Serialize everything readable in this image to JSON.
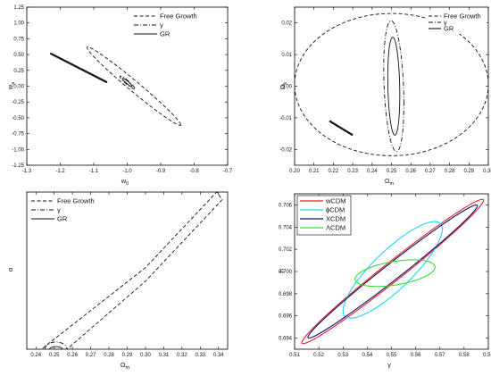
{
  "chart_data": [
    {
      "type": "line",
      "panel": "top-left",
      "xlabel": "w0",
      "ylabel": "wa",
      "xlim": [
        -1.3,
        -0.7
      ],
      "ylim": [
        -1.25,
        1.25
      ],
      "xticks": [
        "-1.3",
        "-1.2",
        "-1.1",
        "-1.0",
        "-0.9",
        "-0.8",
        "-0.7"
      ],
      "yticks": [
        "1.25",
        "1.00",
        "0.75",
        "0.50",
        "0.25",
        "0.00",
        "-0.25",
        "-0.50",
        "-0.75",
        "-1.00",
        "-1.25"
      ],
      "legend": {
        "placement": "top-right",
        "entries": [
          "Free Growth",
          "γ",
          "GR"
        ]
      },
      "series": [
        {
          "name": "Free Growth",
          "style": "dashed",
          "ellipse": {
            "center": [
              -0.98,
              0.0
            ],
            "sx": 0.14,
            "sy": 0.62,
            "rho": -0.985
          }
        },
        {
          "name": "γ",
          "style": "dashdot",
          "ellipse": {
            "center": [
              -1.0,
              0.06
            ],
            "sx": 0.022,
            "sy": 0.1,
            "rho": -0.93
          }
        },
        {
          "name": "GR",
          "style": "solid",
          "ellipse": {
            "center": [
              -1.0,
              0.06
            ],
            "sx": 0.014,
            "sy": 0.065,
            "rho": -0.93
          }
        }
      ],
      "annotations": [
        {
          "name": "GR",
          "kind": "degeneracy-line",
          "from": [
            -1.23,
            0.52
          ],
          "to": [
            -1.06,
            0.06
          ]
        }
      ]
    },
    {
      "type": "line",
      "panel": "top-right",
      "xlabel": "Ωm",
      "ylabel": "Ωk",
      "xlim": [
        0.2,
        0.3
      ],
      "ylim": [
        -0.025,
        0.025
      ],
      "xticks": [
        "0.20",
        "0.21",
        "0.22",
        "0.23",
        "0.24",
        "0.25",
        "0.26",
        "0.27",
        "0.28",
        "0.29",
        "0.30"
      ],
      "yticks": [
        "0.02",
        "0.01",
        "0.00",
        "-0.01",
        "-0.02"
      ],
      "legend": {
        "placement": "top-right",
        "entries": [
          "Free Growth",
          "γ",
          "GR"
        ]
      },
      "series": [
        {
          "name": "Free Growth",
          "style": "dashed",
          "ellipse": {
            "center": [
              0.25,
              0.0005
            ],
            "sx": 0.05,
            "sy": 0.0225,
            "rho": 0.0
          }
        },
        {
          "name": "γ",
          "style": "dashdot",
          "ellipse": {
            "center": [
              0.2512,
              0.0
            ],
            "sx": 0.0052,
            "sy": 0.0207,
            "rho": -0.27
          }
        },
        {
          "name": "GR",
          "style": "solid",
          "ellipse": {
            "center": [
              0.2512,
              0.0
            ],
            "sx": 0.0031,
            "sy": 0.0155,
            "rho": -0.18
          }
        }
      ],
      "annotations": [
        {
          "name": "Free Growth",
          "kind": "degeneracy-line",
          "from": [
            0.218,
            -0.011
          ],
          "to": [
            0.23,
            -0.0155
          ]
        }
      ]
    },
    {
      "type": "line",
      "panel": "bottom-left",
      "xlabel": "Ωm",
      "ylabel": "α",
      "xlim": [
        0.235,
        0.345
      ],
      "ylim": [
        0.0,
        1.85
      ],
      "xticks": [
        "0.24",
        "0.25",
        "0.26",
        "0.27",
        "0.28",
        "0.29",
        "0.30",
        "0.31",
        "0.32",
        "0.33",
        "0.34"
      ],
      "yticks": [],
      "legend": {
        "placement": "top-left",
        "entries": [
          "Free Growth",
          "γ",
          "GR"
        ]
      },
      "series": [
        {
          "name": "Free Growth",
          "style": "dashed",
          "points": [
            [
              0.243,
              0.0
            ],
            [
              0.257,
              0.0
            ],
            [
              0.3,
              0.8
            ],
            [
              0.342,
              1.76
            ],
            [
              0.339,
              1.85
            ],
            [
              0.3,
              0.96
            ],
            [
              0.243,
              0.0
            ]
          ]
        },
        {
          "name": "γ",
          "style": "dashdot",
          "half_ellipse": {
            "center": [
              0.251,
              0.0
            ],
            "rx": 0.006,
            "ry": 0.085
          }
        },
        {
          "name": "GR",
          "style": "solid",
          "half_ellipse": {
            "center": [
              0.251,
              0.0
            ],
            "rx": 0.0035,
            "ry": 0.03
          }
        }
      ]
    },
    {
      "type": "line",
      "panel": "bottom-right",
      "xlabel": "γ",
      "ylabel": "h",
      "xlim": [
        0.51,
        0.59
      ],
      "ylim": [
        0.693,
        0.707
      ],
      "xticks": [
        "0.51",
        "0.52",
        "0.53",
        "0.54",
        "0.55",
        "0.56",
        "0.57",
        "0.58",
        "0.59"
      ],
      "yticks": [
        "0.706",
        "0.704",
        "0.702",
        "0.700",
        "0.698",
        "0.696",
        "0.694"
      ],
      "legend": {
        "placement": "top-left",
        "entries": [
          "wCDM",
          "ϕCDM",
          "XCDM",
          "ΛCDM"
        ]
      },
      "series": [
        {
          "name": "wCDM",
          "style": "solid",
          "color": "#e8202a",
          "ellipse": {
            "center": [
              0.5505,
              0.7
            ],
            "sx": 0.0375,
            "sy": 0.0065,
            "rho": 0.986
          }
        },
        {
          "name": "ϕCDM",
          "style": "solid",
          "color": "#22d4f0",
          "ellipse": {
            "center": [
              0.5505,
              0.70015
            ],
            "sx": 0.0205,
            "sy": 0.00435,
            "rho": 0.845
          }
        },
        {
          "name": "XCDM",
          "style": "solid",
          "color": "#101070",
          "ellipse": {
            "center": [
              0.5505,
              0.7
            ],
            "sx": 0.035,
            "sy": 0.006,
            "rho": 0.988
          }
        },
        {
          "name": "ΛCDM",
          "style": "solid",
          "color": "#33dd33",
          "ellipse": {
            "center": [
              0.5515,
              0.69985
            ],
            "sx": 0.0165,
            "sy": 0.0012,
            "rho": 0.45
          }
        }
      ]
    }
  ]
}
